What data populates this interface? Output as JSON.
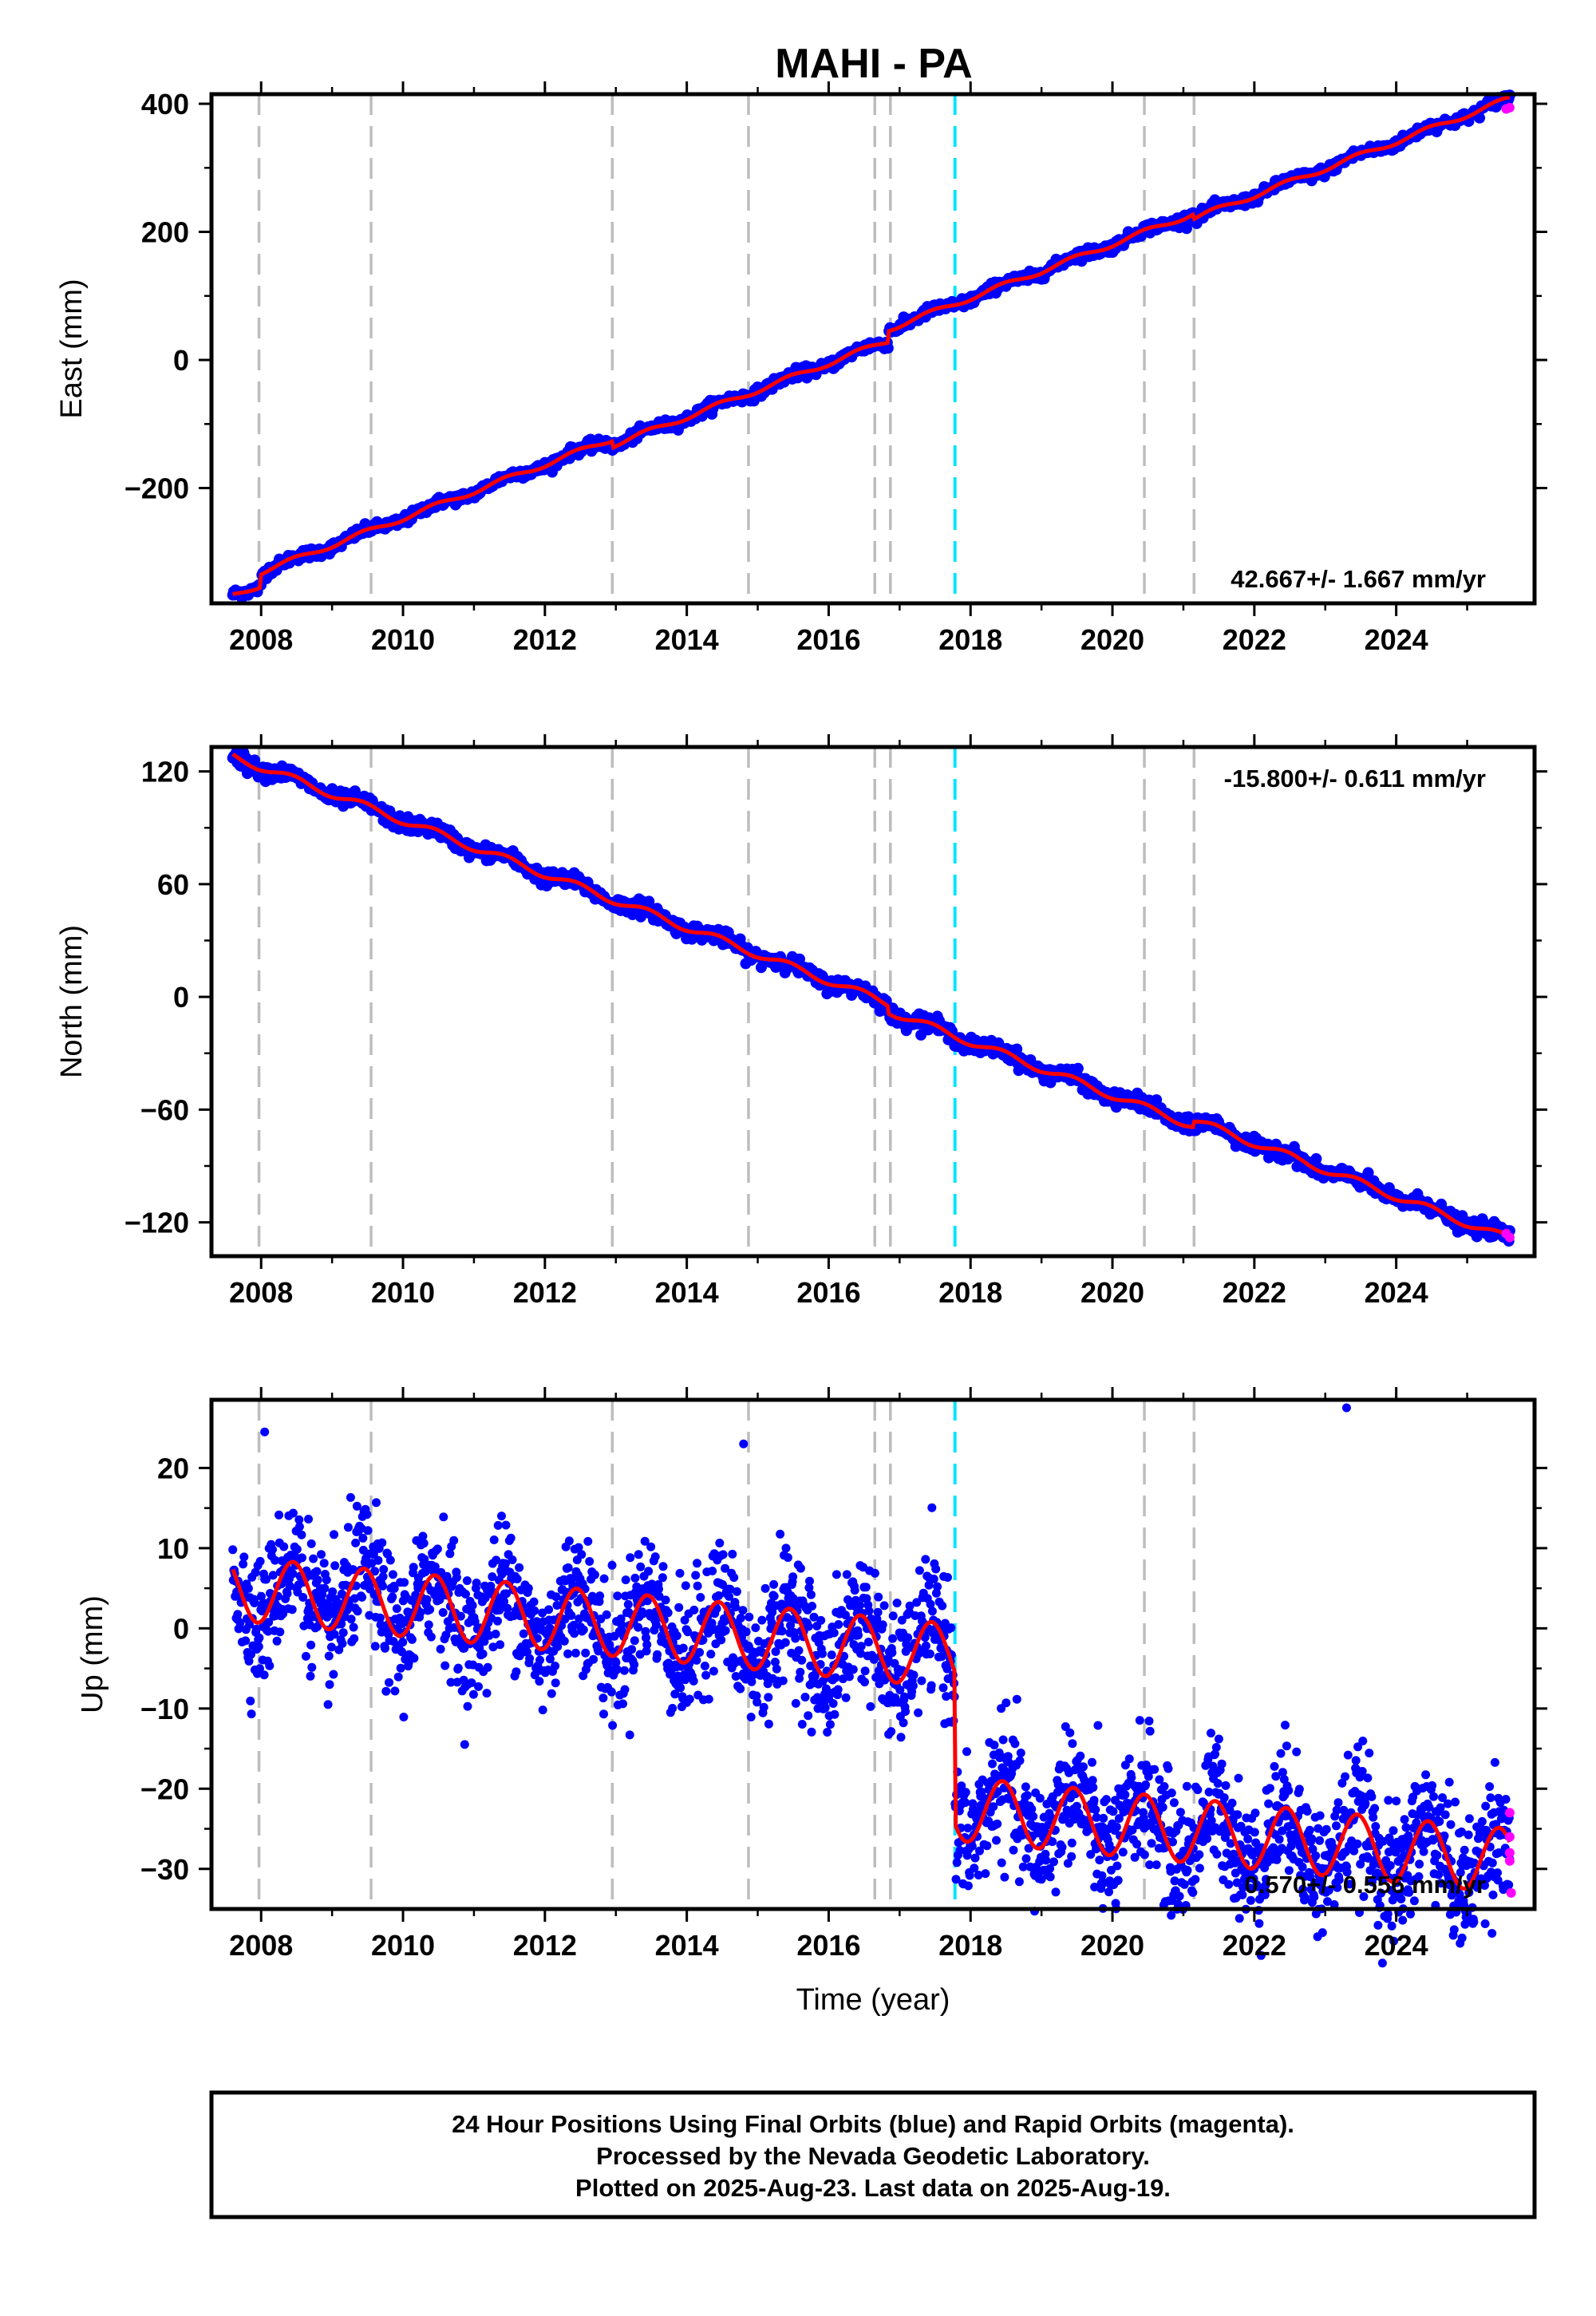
{
  "title": "MAHI - PA",
  "footer": {
    "lines": [
      "24 Hour Positions Using Final Orbits (blue) and Rapid Orbits (magenta).",
      "Processed by the Nevada Geodetic Laboratory.",
      "Plotted on 2025-Aug-23. Last data on 2025-Aug-19."
    ]
  },
  "colors": {
    "final_orbits": "#0000ff",
    "rapid_orbits": "#ff00ff",
    "model_fit": "#ff0000",
    "equipment_change": "#bdbdbd",
    "earthquake": "#00e5ff"
  },
  "chart_data": [
    {
      "type": "scatter",
      "component": "East",
      "ylabel": "East (mm)",
      "xlabel": "",
      "xlim": [
        2007.3,
        2025.95
      ],
      "ylim": [
        -380,
        415
      ],
      "x_ticks": [
        2008,
        2010,
        2012,
        2014,
        2016,
        2018,
        2020,
        2022,
        2024
      ],
      "y_ticks": [
        -200,
        0,
        200,
        400
      ],
      "rate_label": "42.667+/- 1.667 mm/yr",
      "rate_position": "bottom-right",
      "trend": {
        "start": [
          2007.6,
          -368
        ],
        "end": [
          2025.6,
          388
        ]
      },
      "offsets": [
        [
          2008.0,
          20
        ],
        [
          2012.95,
          -10
        ],
        [
          2016.85,
          18
        ],
        [
          2021.15,
          -8
        ]
      ],
      "seasonal_amplitude": 4,
      "noise": 4,
      "outliers": []
    },
    {
      "type": "scatter",
      "component": "North",
      "ylabel": "North (mm)",
      "xlabel": "",
      "xlim": [
        2007.3,
        2025.95
      ],
      "ylim": [
        -138,
        133
      ],
      "x_ticks": [
        2008,
        2010,
        2012,
        2014,
        2016,
        2018,
        2020,
        2022,
        2024
      ],
      "y_ticks": [
        -120,
        -60,
        0,
        60,
        120
      ],
      "rate_label": "-15.800+/- 0.611 mm/yr",
      "rate_position": "top-right",
      "trend": {
        "start": [
          2007.6,
          128
        ],
        "end": [
          2025.6,
          -128
        ]
      },
      "offsets": [
        [
          2016.85,
          -4
        ],
        [
          2021.15,
          3
        ]
      ],
      "seasonal_amplitude": 2,
      "noise": 2,
      "outliers": []
    },
    {
      "type": "scatter",
      "component": "Up",
      "ylabel": "Up (mm)",
      "xlabel": "Time (year)",
      "xlim": [
        2007.3,
        2025.95
      ],
      "ylim": [
        -35,
        28.5
      ],
      "x_ticks": [
        2008,
        2010,
        2012,
        2014,
        2016,
        2018,
        2020,
        2022,
        2024
      ],
      "y_ticks": [
        -30,
        -20,
        -10,
        0,
        10,
        20
      ],
      "rate_label": "0.570+/- 0.556 mm/yr",
      "rate_position": "bottom-right",
      "trend": {
        "start": [
          2007.6,
          5
        ],
        "end": [
          2025.6,
          -10
        ]
      },
      "offsets": [
        [
          2017.78,
          -19
        ]
      ],
      "seasonal_amplitude": 4,
      "noise": 4,
      "outliers": [
        [
          2023.3,
          27.5
        ],
        [
          2008.05,
          24.5
        ],
        [
          2014.8,
          23
        ]
      ]
    }
  ],
  "events": {
    "equipment_changes": [
      2007.97,
      2009.55,
      2012.95,
      2014.87,
      2016.65,
      2016.87,
      2020.45,
      2021.15
    ],
    "earthquakes": [
      2017.78
    ]
  },
  "rapid_orbits": {
    "East": [
      [
        2025.55,
        392
      ],
      [
        2025.6,
        394
      ]
    ],
    "North": [
      [
        2025.55,
        -126
      ],
      [
        2025.6,
        -128
      ]
    ],
    "Up": [
      [
        2025.6,
        -23
      ],
      [
        2025.6,
        -26
      ],
      [
        2025.6,
        -28
      ],
      [
        2025.6,
        -29
      ],
      [
        2025.62,
        -33
      ]
    ]
  }
}
